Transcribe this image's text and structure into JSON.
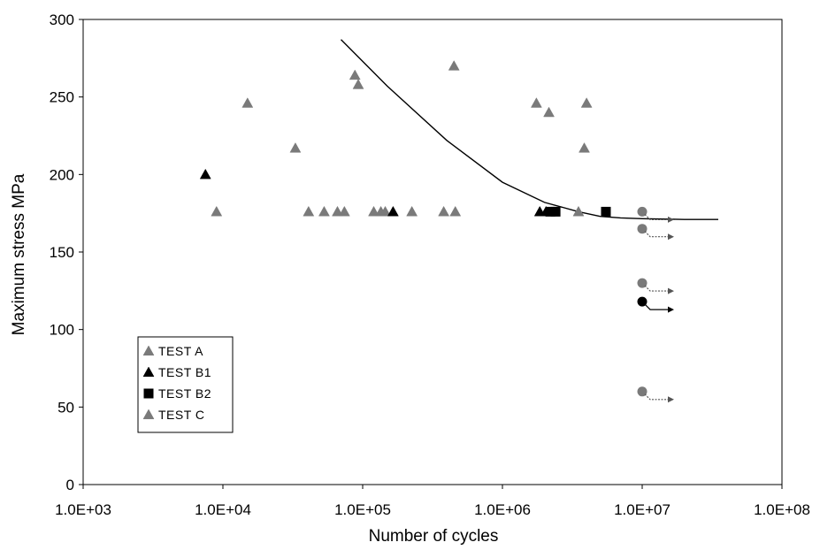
{
  "chart_data": {
    "type": "scatter",
    "xlabel": "Number of cycles",
    "ylabel": "Maximum stress  MPa",
    "x_scale": "log",
    "xlim": [
      1000,
      100000000
    ],
    "ylim": [
      0,
      300
    ],
    "x_ticks": [
      1000,
      10000,
      100000,
      1000000,
      10000000,
      100000000
    ],
    "x_tick_labels": [
      "1.0E+03",
      "1.0E+04",
      "1.0E+05",
      "1.0E+06",
      "1.0E+07",
      "1.0E+08"
    ],
    "y_ticks": [
      0,
      50,
      100,
      150,
      200,
      250,
      300
    ],
    "grid": false,
    "legend_position": "lower-left",
    "series": [
      {
        "name": "TEST A",
        "marker": "triangle",
        "color": "#7a7a7a",
        "points": [
          {
            "x": 9000,
            "y": 176
          },
          {
            "x": 15000,
            "y": 246
          },
          {
            "x": 33000,
            "y": 217
          },
          {
            "x": 41000,
            "y": 176
          },
          {
            "x": 53000,
            "y": 176
          },
          {
            "x": 66000,
            "y": 176
          },
          {
            "x": 74000,
            "y": 176
          },
          {
            "x": 88000,
            "y": 264
          },
          {
            "x": 93000,
            "y": 258
          },
          {
            "x": 120000,
            "y": 176
          },
          {
            "x": 135000,
            "y": 176
          },
          {
            "x": 145000,
            "y": 176
          },
          {
            "x": 225000,
            "y": 176
          },
          {
            "x": 380000,
            "y": 176
          },
          {
            "x": 450000,
            "y": 270
          },
          {
            "x": 460000,
            "y": 176
          },
          {
            "x": 1750000,
            "y": 246
          },
          {
            "x": 2150000,
            "y": 240
          },
          {
            "x": 3500000,
            "y": 176
          },
          {
            "x": 3850000,
            "y": 217
          },
          {
            "x": 4000000,
            "y": 246
          }
        ]
      },
      {
        "name": "TEST B1",
        "marker": "triangle",
        "color": "#000000",
        "points": [
          {
            "x": 7500,
            "y": 200
          },
          {
            "x": 165000,
            "y": 176
          },
          {
            "x": 1850000,
            "y": 176
          },
          {
            "x": 2050000,
            "y": 176
          }
        ]
      },
      {
        "name": "TEST B2",
        "marker": "square",
        "color": "#000000",
        "points": [
          {
            "x": 2200000,
            "y": 176
          },
          {
            "x": 2400000,
            "y": 176
          },
          {
            "x": 5500000,
            "y": 176
          }
        ]
      },
      {
        "name": "TEST C",
        "marker": "triangle",
        "color": "#7a7a7a",
        "points": []
      }
    ],
    "runouts": [
      {
        "x": 10000000,
        "y": 176,
        "color": "#7a7a7a"
      },
      {
        "x": 10000000,
        "y": 165,
        "color": "#7a7a7a"
      },
      {
        "x": 10000000,
        "y": 130,
        "color": "#7a7a7a"
      },
      {
        "x": 10000000,
        "y": 118,
        "color": "#000000"
      },
      {
        "x": 10000000,
        "y": 60,
        "color": "#7a7a7a"
      }
    ],
    "fit_curve": [
      [
        70000,
        287
      ],
      [
        150000,
        257
      ],
      [
        400000,
        222
      ],
      [
        1000000,
        195
      ],
      [
        2000000,
        182
      ],
      [
        3500000,
        176
      ],
      [
        5000000,
        173
      ],
      [
        7000000,
        172
      ],
      [
        10000000,
        171.5
      ],
      [
        20000000,
        171
      ],
      [
        35000000,
        171
      ]
    ]
  }
}
